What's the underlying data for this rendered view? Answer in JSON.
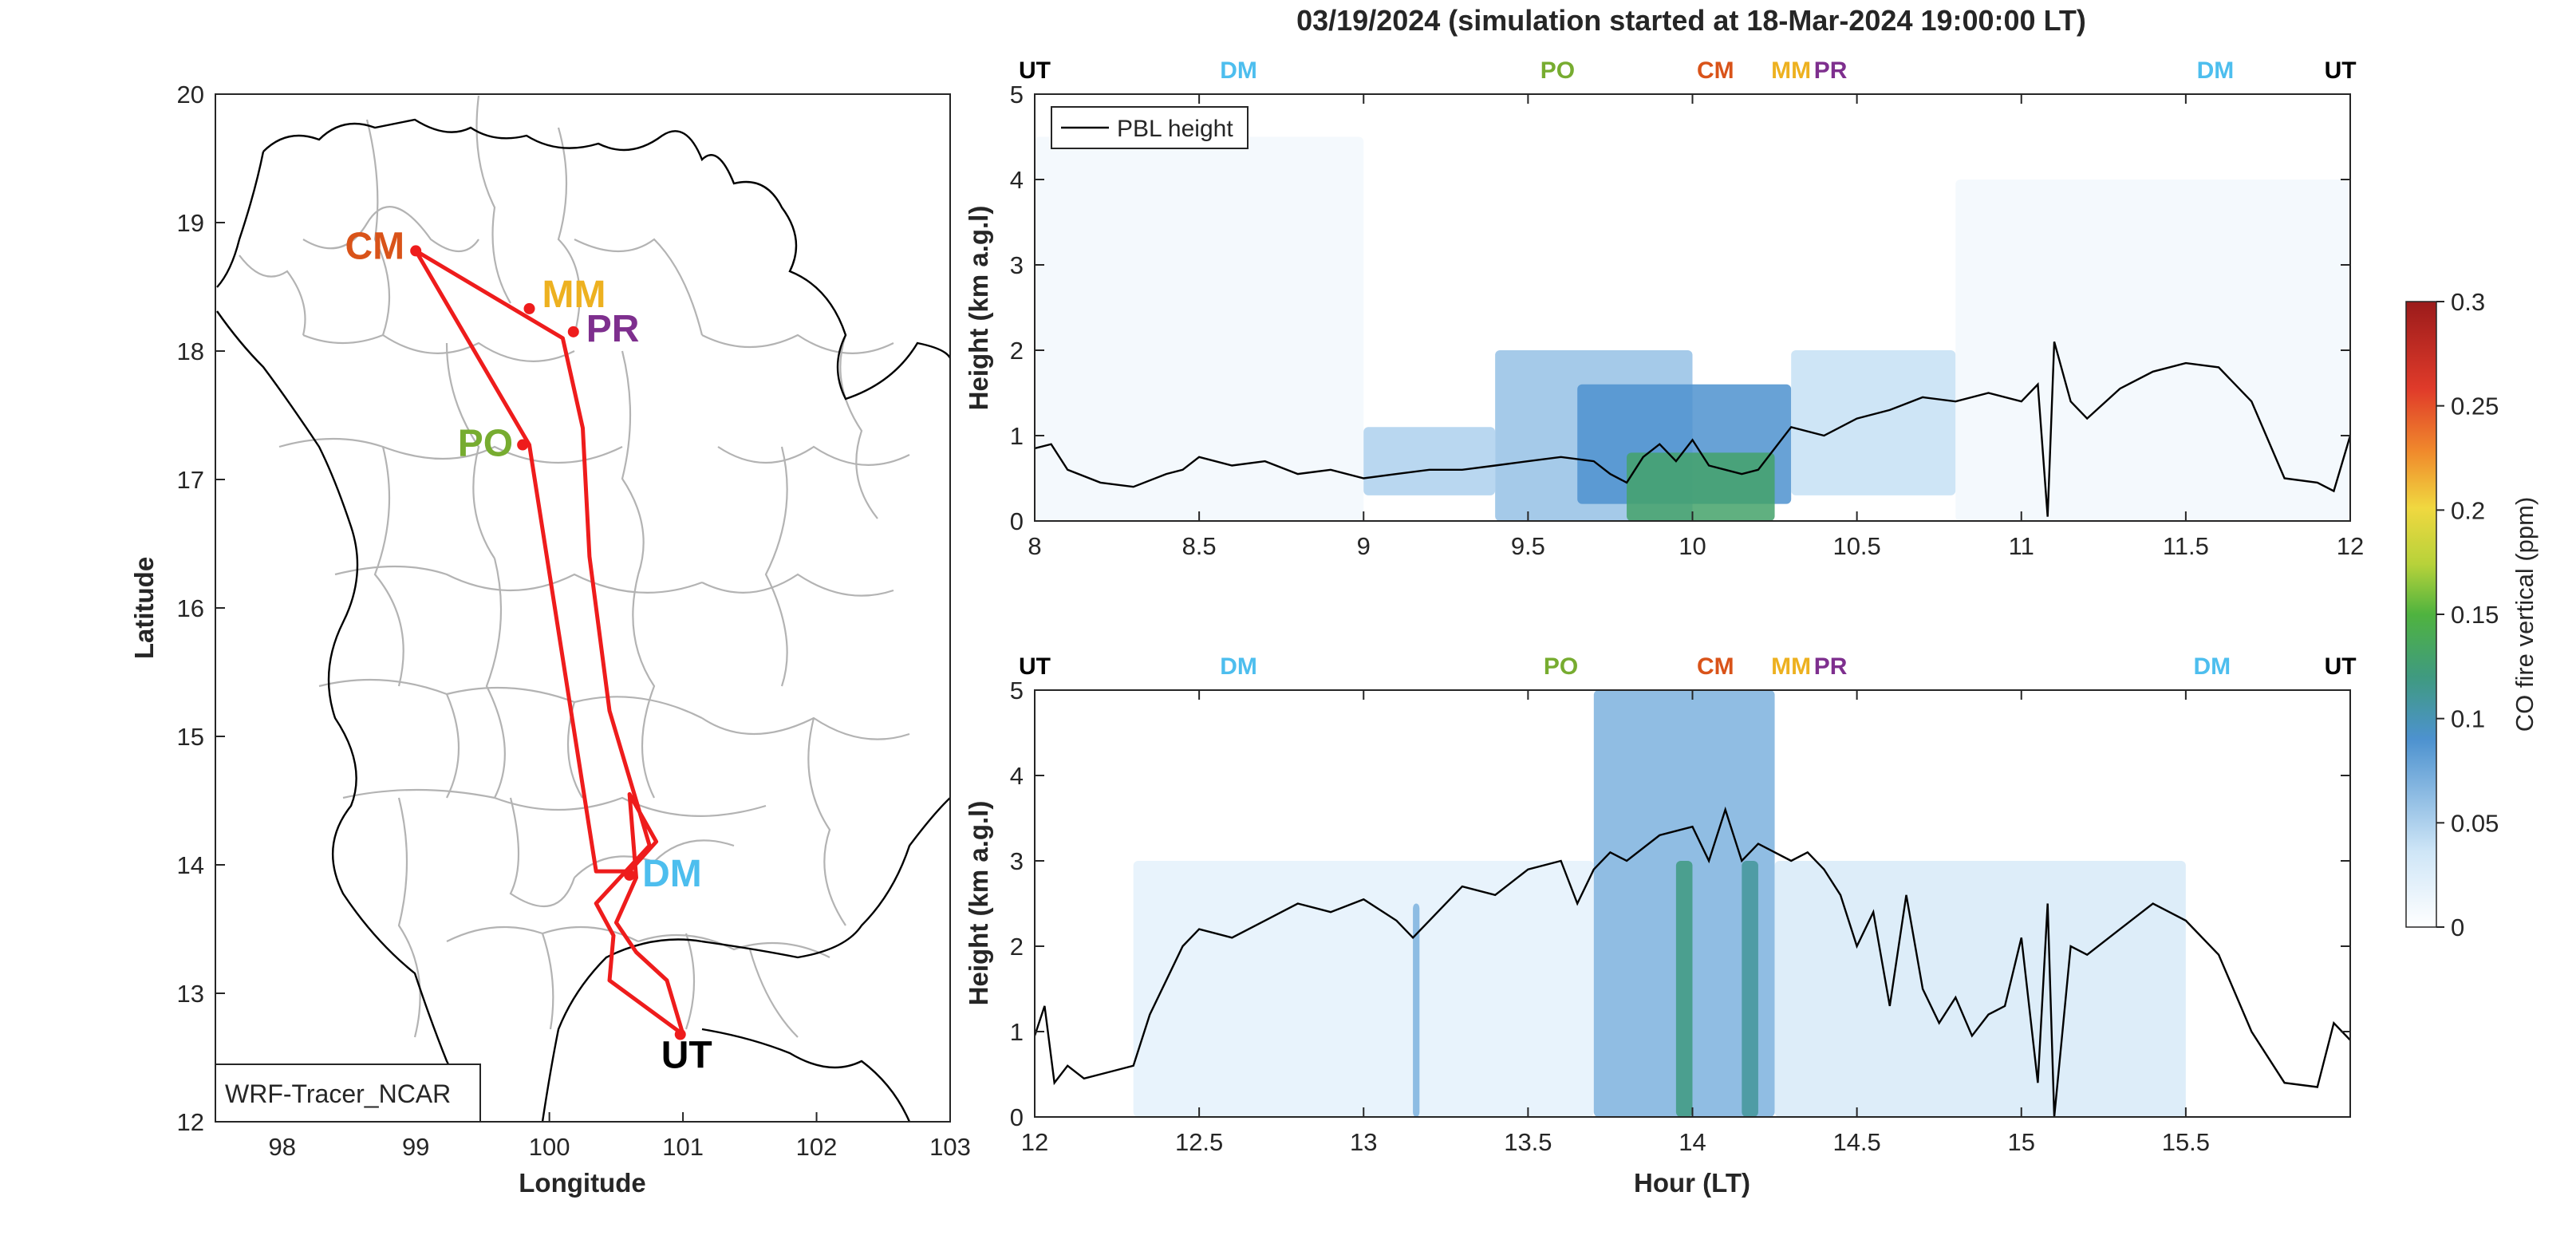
{
  "title": "03/19/2024 (simulation started at 18-Mar-2024 19:00:00 LT)",
  "colors": {
    "route": "#ee1c1c",
    "CM": "#d95319",
    "MM": "#edb120",
    "PR": "#7e2f8e",
    "PO": "#77ac30",
    "DM": "#4dbeee",
    "UT": "#000000",
    "borders": "#b3b3b3"
  },
  "map": {
    "xlabel": "Longitude",
    "ylabel": "Latitude",
    "xlim": [
      97.5,
      103
    ],
    "ylim": [
      12,
      20
    ],
    "xticks": [
      "98",
      "99",
      "100",
      "101",
      "102",
      "103"
    ],
    "yticks": [
      "12",
      "13",
      "14",
      "15",
      "16",
      "17",
      "18",
      "19",
      "20"
    ],
    "model_label": "WRF-Tracer_NCAR",
    "route": [
      [
        101.0,
        12.68
      ],
      [
        100.45,
        13.1
      ],
      [
        100.48,
        13.45
      ],
      [
        100.35,
        13.7
      ],
      [
        100.75,
        14.15
      ],
      [
        100.45,
        15.2
      ],
      [
        100.3,
        16.4
      ],
      [
        100.25,
        17.4
      ],
      [
        100.1,
        18.1
      ],
      [
        99.0,
        18.78
      ],
      [
        99.85,
        17.27
      ],
      [
        100.35,
        13.95
      ],
      [
        100.6,
        13.95
      ],
      [
        100.8,
        14.18
      ],
      [
        100.6,
        14.55
      ],
      [
        100.65,
        13.9
      ],
      [
        100.5,
        13.55
      ],
      [
        100.65,
        13.32
      ],
      [
        100.88,
        13.1
      ],
      [
        101.0,
        12.68
      ]
    ],
    "stops": [
      {
        "code": "CM",
        "lon": 99.0,
        "lat": 18.78
      },
      {
        "code": "MM",
        "lon": 99.85,
        "lat": 18.33
      },
      {
        "code": "PR",
        "lon": 100.18,
        "lat": 18.15
      },
      {
        "code": "PO",
        "lon": 99.8,
        "lat": 17.27
      },
      {
        "code": "DM",
        "lon": 100.6,
        "lat": 13.92
      },
      {
        "code": "UT",
        "lon": 100.98,
        "lat": 12.68
      }
    ]
  },
  "chart_data": [
    {
      "type": "heatmap",
      "panel": "top",
      "x": "hour (LT)",
      "xlim": [
        8,
        12
      ],
      "xticks": [
        "8",
        "8.5",
        "9",
        "9.5",
        "10",
        "10.5",
        "11",
        "11.5",
        "12"
      ],
      "ylabel": "Height (km a.g.l)",
      "ylim": [
        0,
        5
      ],
      "yticks": [
        "0",
        "1",
        "2",
        "3",
        "4",
        "5"
      ],
      "legend": "PBL height",
      "legend_position": "top-left",
      "site_markers": [
        {
          "code": "UT",
          "hour": 8.0
        },
        {
          "code": "DM",
          "hour": 8.62
        },
        {
          "code": "PO",
          "hour": 9.59
        },
        {
          "code": "CM",
          "hour": 10.07
        },
        {
          "code": "MM",
          "hour": 10.3
        },
        {
          "code": "PR",
          "hour": 10.42
        },
        {
          "code": "DM",
          "hour": 11.59
        },
        {
          "code": "UT",
          "hour": 11.97
        }
      ],
      "pbl_height": {
        "hours": [
          8.0,
          8.05,
          8.1,
          8.2,
          8.3,
          8.4,
          8.45,
          8.5,
          8.6,
          8.7,
          8.8,
          8.9,
          9.0,
          9.1,
          9.2,
          9.3,
          9.4,
          9.5,
          9.6,
          9.7,
          9.75,
          9.8,
          9.85,
          9.9,
          9.95,
          10.0,
          10.05,
          10.1,
          10.15,
          10.2,
          10.25,
          10.3,
          10.4,
          10.5,
          10.6,
          10.7,
          10.8,
          10.9,
          11.0,
          11.05,
          11.08,
          11.1,
          11.15,
          11.2,
          11.3,
          11.4,
          11.5,
          11.6,
          11.7,
          11.8,
          11.9,
          11.95,
          12.0
        ],
        "km": [
          0.85,
          0.9,
          0.6,
          0.45,
          0.4,
          0.55,
          0.6,
          0.75,
          0.65,
          0.7,
          0.55,
          0.6,
          0.5,
          0.55,
          0.6,
          0.6,
          0.65,
          0.7,
          0.75,
          0.7,
          0.55,
          0.45,
          0.75,
          0.9,
          0.7,
          0.95,
          0.65,
          0.6,
          0.55,
          0.6,
          0.85,
          1.1,
          1.0,
          1.2,
          1.3,
          1.45,
          1.4,
          1.5,
          1.4,
          1.6,
          0.05,
          2.1,
          1.4,
          1.2,
          1.55,
          1.75,
          1.85,
          1.8,
          1.4,
          0.5,
          0.45,
          0.35,
          1.0
        ]
      },
      "co_concentration_ppm": [
        {
          "hours": [
            8.0,
            9.0
          ],
          "km": [
            0.0,
            4.5
          ],
          "ppm": 0.01
        },
        {
          "hours": [
            9.0,
            9.4
          ],
          "km": [
            0.3,
            1.1
          ],
          "ppm": 0.05
        },
        {
          "hours": [
            9.4,
            10.0
          ],
          "km": [
            0.0,
            2.0
          ],
          "ppm": 0.06
        },
        {
          "hours": [
            9.65,
            10.3
          ],
          "km": [
            0.2,
            1.6
          ],
          "ppm": 0.09
        },
        {
          "hours": [
            9.8,
            10.25
          ],
          "km": [
            0.0,
            0.8
          ],
          "ppm": 0.13
        },
        {
          "hours": [
            10.3,
            10.8
          ],
          "km": [
            0.3,
            2.0
          ],
          "ppm": 0.04
        },
        {
          "hours": [
            10.8,
            12.0
          ],
          "km": [
            0.0,
            4.0
          ],
          "ppm": 0.01
        }
      ]
    },
    {
      "type": "heatmap",
      "panel": "bottom",
      "xlabel": "Hour (LT)",
      "xlim": [
        12,
        16
      ],
      "xticks": [
        "12",
        "12.5",
        "13",
        "13.5",
        "14",
        "14.5",
        "15",
        "15.5"
      ],
      "ylabel": "Height (km a.g.l)",
      "ylim": [
        0,
        5
      ],
      "yticks": [
        "0",
        "1",
        "2",
        "3",
        "4",
        "5"
      ],
      "site_markers": [
        {
          "code": "UT",
          "hour": 12.0
        },
        {
          "code": "DM",
          "hour": 12.62
        },
        {
          "code": "PO",
          "hour": 13.6
        },
        {
          "code": "CM",
          "hour": 14.07
        },
        {
          "code": "MM",
          "hour": 14.3
        },
        {
          "code": "PR",
          "hour": 14.42
        },
        {
          "code": "DM",
          "hour": 15.58
        },
        {
          "code": "UT",
          "hour": 15.97
        }
      ],
      "pbl_height": {
        "hours": [
          12.0,
          12.03,
          12.06,
          12.1,
          12.15,
          12.2,
          12.3,
          12.35,
          12.4,
          12.45,
          12.5,
          12.6,
          12.7,
          12.8,
          12.9,
          13.0,
          13.1,
          13.15,
          13.2,
          13.3,
          13.4,
          13.5,
          13.6,
          13.65,
          13.7,
          13.75,
          13.8,
          13.9,
          14.0,
          14.05,
          14.1,
          14.15,
          14.2,
          14.3,
          14.35,
          14.4,
          14.45,
          14.5,
          14.55,
          14.6,
          14.65,
          14.7,
          14.75,
          14.8,
          14.85,
          14.9,
          14.95,
          15.0,
          15.05,
          15.08,
          15.1,
          15.15,
          15.2,
          15.3,
          15.4,
          15.5,
          15.6,
          15.7,
          15.8,
          15.9,
          15.95,
          16.0
        ],
        "km": [
          0.95,
          1.3,
          0.4,
          0.6,
          0.45,
          0.5,
          0.6,
          1.2,
          1.6,
          2.0,
          2.2,
          2.1,
          2.3,
          2.5,
          2.4,
          2.55,
          2.3,
          2.1,
          2.3,
          2.7,
          2.6,
          2.9,
          3.0,
          2.5,
          2.9,
          3.1,
          3.0,
          3.3,
          3.4,
          3.0,
          3.6,
          3.0,
          3.2,
          3.0,
          3.1,
          2.9,
          2.6,
          2.0,
          2.4,
          1.3,
          2.6,
          1.5,
          1.1,
          1.4,
          0.95,
          1.2,
          1.3,
          2.1,
          0.4,
          2.5,
          0.0,
          2.0,
          1.9,
          2.2,
          2.5,
          2.3,
          1.9,
          1.0,
          0.4,
          0.35,
          1.1,
          0.9
        ]
      },
      "co_concentration_ppm": [
        {
          "hours": [
            12.3,
            13.7
          ],
          "km": [
            0.0,
            3.0
          ],
          "ppm": 0.02
        },
        {
          "hours": [
            13.15,
            13.17
          ],
          "km": [
            0.0,
            2.5
          ],
          "ppm": 0.07
        },
        {
          "hours": [
            13.7,
            14.25
          ],
          "km": [
            0.0,
            5.0
          ],
          "ppm": 0.07
        },
        {
          "hours": [
            13.95,
            14.0
          ],
          "km": [
            0.0,
            3.0
          ],
          "ppm": 0.12
        },
        {
          "hours": [
            14.15,
            14.2
          ],
          "km": [
            0.0,
            3.0
          ],
          "ppm": 0.11
        },
        {
          "hours": [
            14.25,
            15.5
          ],
          "km": [
            0.0,
            3.0
          ],
          "ppm": 0.03
        }
      ]
    }
  ],
  "colorbar": {
    "label": "CO fire vertical (ppm)",
    "range": [
      0,
      0.3
    ],
    "ticks": [
      "0",
      "0.05",
      "0.1",
      "0.15",
      "0.2",
      "0.25",
      "0.3"
    ]
  }
}
